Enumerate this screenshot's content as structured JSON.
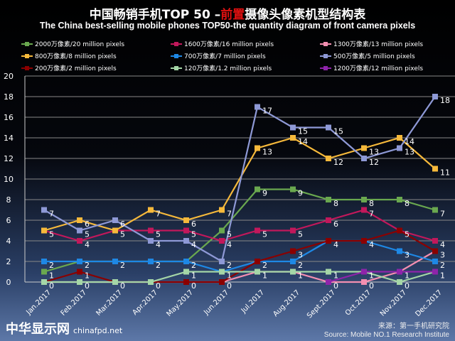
{
  "chart_data": {
    "type": "line",
    "title_prefix": "中国畅销手机TOP 50 –",
    "title_highlight": "前置",
    "title_suffix": "摄像头像素机型结构表",
    "subtitle": "The China best-selling mobile phones TOP50-the quantity diagram of front camera pixels",
    "categories": [
      "Jan.2017",
      "Feb.2017",
      "Mar.2017",
      "Apr.2017",
      "May.2017",
      "Jun.2017",
      "Jul.2017",
      "Aug.2017",
      "Sept.2017",
      "Oct.2017",
      "Nov.2017",
      "Dec.2017"
    ],
    "ylim": [
      0,
      20
    ],
    "yticks": [
      "0",
      "2",
      "4",
      "6",
      "8",
      "10",
      "12",
      "14",
      "16",
      "18",
      "20"
    ],
    "grid": true,
    "legend_placement": "top",
    "series": [
      {
        "name": "2000万像素/20 million pixels",
        "color": "#6aa84f",
        "values": [
          1,
          2,
          2,
          2,
          2,
          5,
          9,
          9,
          8,
          8,
          8,
          7
        ]
      },
      {
        "name": "1600万像素/16 million pixels",
        "color": "#c2185b",
        "values": [
          5,
          4,
          5,
          5,
          5,
          4,
          5,
          5,
          6,
          7,
          5,
          4
        ]
      },
      {
        "name": "1300万像素/13 million pixels",
        "color": "#f48fb1",
        "values": [
          0,
          0,
          0,
          0,
          0,
          0,
          1,
          1,
          0,
          0,
          1,
          3
        ]
      },
      {
        "name": "800万像素/8 million pixels",
        "color": "#f6b93b",
        "values": [
          5,
          6,
          5,
          7,
          6,
          7,
          13,
          14,
          12,
          13,
          14,
          11
        ]
      },
      {
        "name": "700万像素/7 million pixels",
        "color": "#1e88e5",
        "values": [
          2,
          2,
          2,
          2,
          2,
          1,
          2,
          2,
          4,
          4,
          3,
          2
        ]
      },
      {
        "name": "500万像素/5 million pixels",
        "color": "#8e99d6",
        "values": [
          7,
          5,
          6,
          4,
          4,
          2,
          17,
          15,
          15,
          12,
          13,
          18
        ]
      },
      {
        "name": "200万像素/2 million pixels",
        "color": "#8b0000",
        "values": [
          0,
          1,
          0,
          0,
          0,
          0,
          2,
          3,
          4,
          4,
          5,
          3
        ]
      },
      {
        "name": "120万像素/1.2 million pixels",
        "color": "#a5d6a7",
        "values": [
          0,
          0,
          0,
          0,
          1,
          1,
          1,
          1,
          1,
          1,
          0,
          1
        ]
      },
      {
        "name": "1200万像素/12 million pixels",
        "color": "#8e24aa",
        "values": [
          null,
          null,
          null,
          null,
          null,
          null,
          null,
          null,
          0,
          1,
          1,
          1
        ]
      }
    ]
  },
  "source_cn": "来源：第一手机研究院",
  "source_en": "Source: Mobile NO.1 Research Institute",
  "watermark": {
    "cn": "中华显示网",
    "url": "chinafpd.net"
  }
}
